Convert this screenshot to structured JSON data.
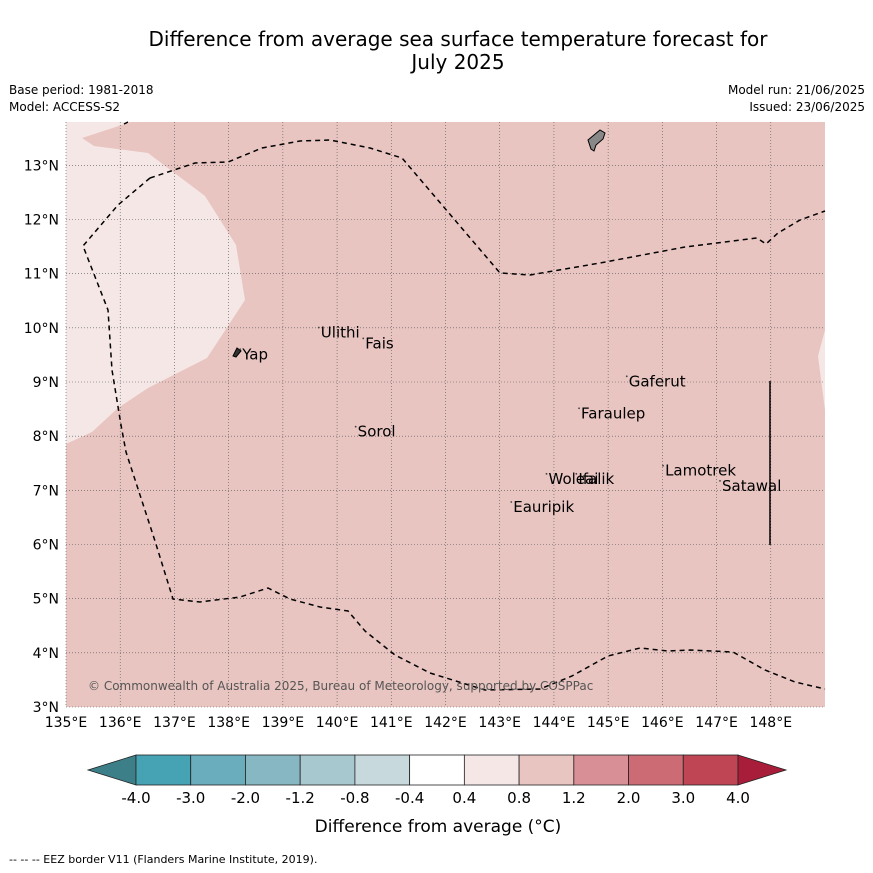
{
  "title_line1": "Difference from average sea surface temperature forecast for",
  "title_line2": "July 2025",
  "base_period": "Base period: 1981-2018",
  "model": "Model: ACCESS-S2",
  "model_run": "Model run: 21/06/2025",
  "issued": "Issued: 23/06/2025",
  "copyright": "© Commonwealth of Australia 2025, Bureau of Meteorology, supported by COSPPac",
  "footer": "--  --  -- EEZ border V11 (Flanders Marine Institute, 2019).",
  "lon_ticks": [
    "135°E",
    "136°E",
    "137°E",
    "138°E",
    "139°E",
    "140°E",
    "141°E",
    "142°E",
    "143°E",
    "144°E",
    "145°E",
    "146°E",
    "147°E",
    "148°E"
  ],
  "lat_ticks": [
    "3°N",
    "4°N",
    "5°N",
    "6°N",
    "7°N",
    "8°N",
    "9°N",
    "10°N",
    "11°N",
    "12°N",
    "13°N"
  ],
  "places": [
    {
      "name": "Yap",
      "lon": 138.25,
      "lat": 9.42
    },
    {
      "name": "Ulithi",
      "lon": 139.7,
      "lat": 9.82
    },
    {
      "name": "Fais",
      "lon": 140.52,
      "lat": 9.62
    },
    {
      "name": "Sorol",
      "lon": 140.38,
      "lat": 7.99
    },
    {
      "name": "Gaferut",
      "lon": 145.38,
      "lat": 8.92
    },
    {
      "name": "Faraulep",
      "lon": 144.5,
      "lat": 8.33
    },
    {
      "name": "Woleai",
      "lon": 143.9,
      "lat": 7.12
    },
    {
      "name": "Ifalik",
      "lon": 144.45,
      "lat": 7.12
    },
    {
      "name": "Lamotrek",
      "lon": 146.05,
      "lat": 7.27
    },
    {
      "name": "Satawal",
      "lon": 147.1,
      "lat": 6.99
    },
    {
      "name": "Eauripik",
      "lon": 143.25,
      "lat": 6.6
    }
  ],
  "colorbar": {
    "label": "Difference from average (°C)",
    "tick_labels": [
      "-4.0",
      "-3.0",
      "-2.0",
      "-1.2",
      "-0.8",
      "-0.4",
      "0.4",
      "0.8",
      "1.2",
      "2.0",
      "3.0",
      "4.0"
    ],
    "colors": [
      "#3d7f88",
      "#45a3b4",
      "#6aaebd",
      "#88b7c4",
      "#a8c8cf",
      "#c7d9dd",
      "#ffffff",
      "#f5e7e6",
      "#e8c5c1",
      "#d98f96",
      "#cc6b74",
      "#bf4554",
      "#a81e3a"
    ]
  },
  "legend": {
    "eez_border": "EEZ border V11"
  },
  "fill_colors": {
    "anomaly_0_8_to_1_2": "#e8c5c1",
    "anomaly_0_4_to_0_8": "#f5e7e6",
    "land": "#888888"
  }
}
